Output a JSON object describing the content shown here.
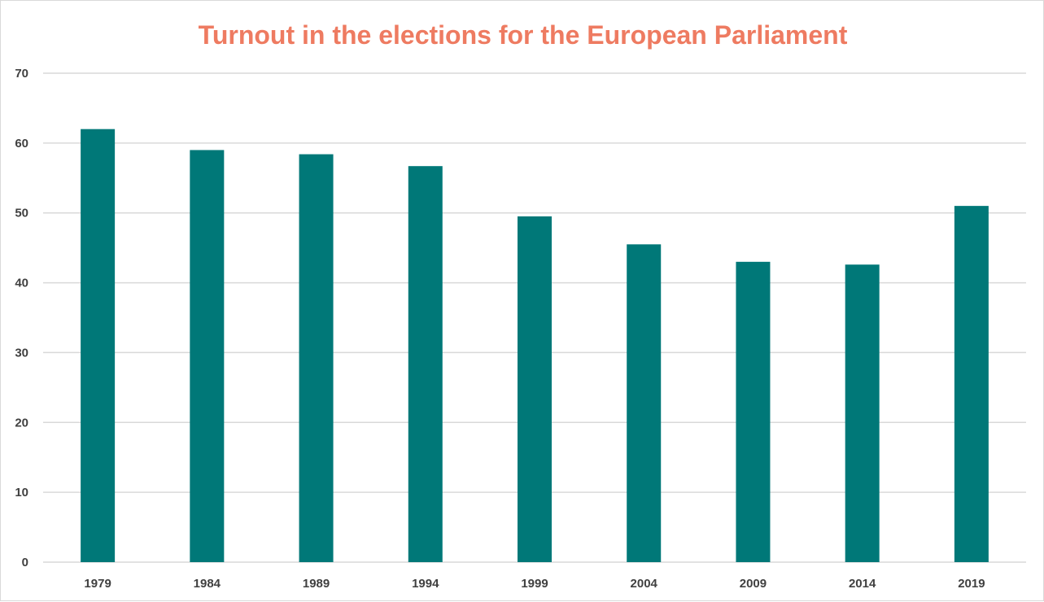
{
  "chart_data": {
    "type": "bar",
    "title": "Turnout in the elections for the European Parliament",
    "categories": [
      "1979",
      "1984",
      "1989",
      "1994",
      "1999",
      "2004",
      "2009",
      "2014",
      "2019"
    ],
    "values": [
      62.0,
      59.0,
      58.4,
      56.7,
      49.5,
      45.5,
      43.0,
      42.6,
      51.0
    ],
    "ylim": [
      0,
      70
    ],
    "yticks": [
      0,
      10,
      20,
      30,
      40,
      50,
      60,
      70
    ],
    "grid": true,
    "legend": "none",
    "xlabel": "",
    "ylabel": ""
  },
  "colors": {
    "bar": "#007878",
    "title": "#EE7B61",
    "grid": "#d9d9d9",
    "tick_text": "#404040"
  }
}
